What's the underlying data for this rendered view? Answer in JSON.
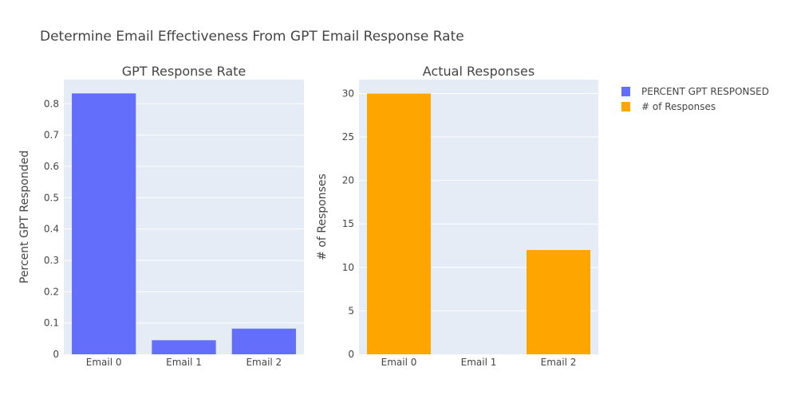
{
  "title": "Determine Email Effectiveness From GPT Email Response Rate",
  "legend": [
    {
      "label": "PERCENT GPT RESPONSED",
      "color": "#636efa"
    },
    {
      "label": "# of Responses",
      "color": "#ffa500"
    }
  ],
  "chart_data": [
    {
      "type": "bar",
      "title": "GPT Response Rate",
      "xlabel": "",
      "ylabel": "Percent GPT Responded",
      "categories": [
        "Email 0",
        "Email 1",
        "Email 2"
      ],
      "series": [
        {
          "name": "PERCENT GPT RESPONSED",
          "values": [
            0.833,
            0.045,
            0.082
          ],
          "color": "#636efa"
        }
      ],
      "ylim": [
        0,
        0.877
      ],
      "yticks": [
        0,
        0.1,
        0.2,
        0.3,
        0.4,
        0.5,
        0.6,
        0.7,
        0.8
      ],
      "ytick_labels": [
        "0",
        "0.1",
        "0.2",
        "0.3",
        "0.4",
        "0.5",
        "0.6",
        "0.7",
        "0.8"
      ],
      "grid": true
    },
    {
      "type": "bar",
      "title": "Actual Responses",
      "xlabel": "",
      "ylabel": "# of Responses",
      "categories": [
        "Email 0",
        "Email 1",
        "Email 2"
      ],
      "series": [
        {
          "name": "# of Responses",
          "values": [
            30,
            0,
            12
          ],
          "color": "#ffa500"
        }
      ],
      "ylim": [
        0,
        31.6
      ],
      "yticks": [
        0,
        5,
        10,
        15,
        20,
        25,
        30
      ],
      "ytick_labels": [
        "0",
        "5",
        "10",
        "15",
        "20",
        "25",
        "30"
      ],
      "grid": true
    }
  ],
  "colors": {
    "plot_bg": "#e5ecf6",
    "grid": "#ffffff",
    "text": "#444444"
  }
}
